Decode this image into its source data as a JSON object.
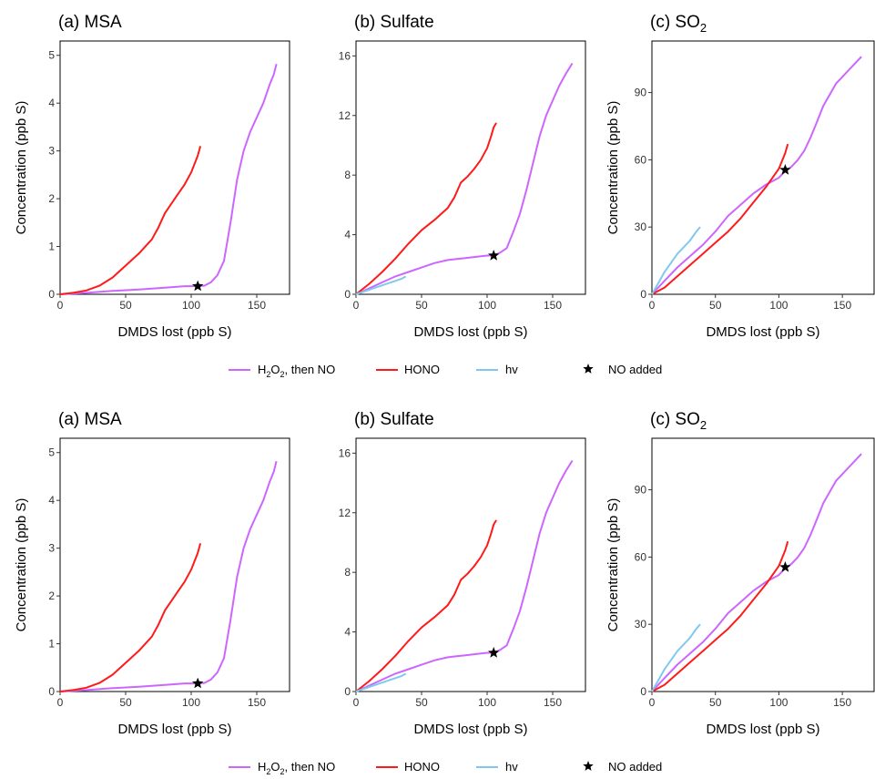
{
  "colors": {
    "h2o2_then_no": "#cc66ff",
    "hono": "#ff1a1a",
    "hv": "#80c8f0",
    "star": "#000000"
  },
  "legend": {
    "items": [
      {
        "key": "h2o2",
        "label_pre": "H",
        "sub1": "2",
        "mid": "O",
        "sub2": "2",
        "post": ", then NO"
      },
      {
        "key": "hono",
        "label": "HONO"
      },
      {
        "key": "hv",
        "label": "hv"
      },
      {
        "key": "star",
        "label": "NO added"
      }
    ]
  },
  "chart_data": [
    {
      "type": "line",
      "title": "(a) MSA",
      "xlabel": "DMDS lost (ppb S)",
      "ylabel": "Concentration (ppb S)",
      "xlim": [
        0,
        175
      ],
      "ylim": [
        0,
        5.3
      ],
      "xticks": [
        0,
        50,
        100,
        150
      ],
      "yticks": [
        0,
        1,
        2,
        3,
        4,
        5
      ],
      "series": [
        {
          "name": "H2O2, then NO",
          "color_key": "h2o2_then_no",
          "x": [
            0,
            20,
            40,
            60,
            80,
            95,
            105,
            110,
            115,
            120,
            125,
            130,
            135,
            140,
            145,
            150,
            155,
            160,
            163,
            165
          ],
          "y": [
            0,
            0.03,
            0.07,
            0.1,
            0.14,
            0.17,
            0.17,
            0.18,
            0.25,
            0.4,
            0.7,
            1.5,
            2.4,
            3.0,
            3.4,
            3.7,
            4.0,
            4.4,
            4.6,
            4.82
          ]
        },
        {
          "name": "HONO",
          "color_key": "hono",
          "x": [
            0,
            10,
            20,
            30,
            40,
            50,
            60,
            70,
            75,
            80,
            85,
            90,
            95,
            100,
            105,
            107
          ],
          "y": [
            0,
            0.03,
            0.08,
            0.18,
            0.35,
            0.6,
            0.85,
            1.15,
            1.4,
            1.7,
            1.9,
            2.1,
            2.3,
            2.55,
            2.9,
            3.1
          ]
        }
      ],
      "markers": [
        {
          "name": "NO added",
          "x": 105,
          "y": 0.17
        }
      ]
    },
    {
      "type": "line",
      "title": "(b) Sulfate",
      "xlabel": "DMDS lost (ppb S)",
      "ylabel": "",
      "xlim": [
        0,
        175
      ],
      "ylim": [
        0,
        17
      ],
      "xticks": [
        0,
        50,
        100,
        150
      ],
      "yticks": [
        0,
        4,
        8,
        12,
        16
      ],
      "series": [
        {
          "name": "H2O2, then NO",
          "color_key": "h2o2_then_no",
          "x": [
            0,
            10,
            20,
            30,
            40,
            50,
            60,
            70,
            80,
            90,
            100,
            105,
            110,
            115,
            120,
            125,
            130,
            135,
            140,
            145,
            150,
            155,
            160,
            165
          ],
          "y": [
            0,
            0.4,
            0.8,
            1.2,
            1.5,
            1.8,
            2.1,
            2.3,
            2.4,
            2.5,
            2.6,
            2.6,
            2.8,
            3.1,
            4.2,
            5.4,
            7.0,
            8.8,
            10.6,
            12.0,
            13.0,
            14.0,
            14.8,
            15.5
          ]
        },
        {
          "name": "HONO",
          "color_key": "hono",
          "x": [
            0,
            10,
            20,
            30,
            40,
            50,
            60,
            70,
            75,
            80,
            85,
            90,
            95,
            100,
            103,
            105,
            107
          ],
          "y": [
            0,
            0.7,
            1.5,
            2.4,
            3.4,
            4.3,
            5.0,
            5.8,
            6.5,
            7.5,
            7.9,
            8.4,
            9.0,
            9.8,
            10.6,
            11.2,
            11.5
          ]
        },
        {
          "name": "hv",
          "color_key": "hv",
          "x": [
            0,
            5,
            10,
            15,
            20,
            25,
            30,
            35,
            38
          ],
          "y": [
            0,
            0.15,
            0.3,
            0.45,
            0.6,
            0.75,
            0.9,
            1.05,
            1.2
          ]
        }
      ],
      "markers": [
        {
          "name": "NO added",
          "x": 105,
          "y": 2.6
        }
      ]
    },
    {
      "type": "line",
      "title_pre": "(c) SO",
      "title_sub": "2",
      "xlabel": "DMDS lost (ppb S)",
      "ylabel": "Concentration (ppb S)",
      "xlim": [
        0,
        175
      ],
      "ylim": [
        0,
        113
      ],
      "xticks": [
        0,
        50,
        100,
        150
      ],
      "yticks": [
        0,
        30,
        60,
        90
      ],
      "series": [
        {
          "name": "H2O2, then NO",
          "color_key": "h2o2_then_no",
          "x": [
            0,
            10,
            20,
            30,
            40,
            50,
            60,
            70,
            80,
            90,
            100,
            105,
            110,
            115,
            120,
            125,
            130,
            135,
            140,
            145,
            150,
            155,
            160,
            165
          ],
          "y": [
            0,
            6,
            12,
            17,
            22,
            28,
            35,
            40,
            45,
            49,
            52,
            55,
            57,
            60,
            64,
            70,
            77,
            84,
            89,
            94,
            97,
            100,
            103,
            106
          ]
        },
        {
          "name": "HONO",
          "color_key": "hono",
          "x": [
            0,
            10,
            20,
            30,
            40,
            50,
            60,
            70,
            80,
            90,
            100,
            105,
            107
          ],
          "y": [
            0,
            3,
            8,
            13,
            18,
            23,
            28,
            34,
            41,
            48,
            56,
            63,
            67
          ]
        },
        {
          "name": "hv",
          "color_key": "hv",
          "x": [
            0,
            5,
            10,
            15,
            20,
            25,
            30,
            35,
            38
          ],
          "y": [
            0,
            5,
            10,
            14,
            18,
            21,
            24,
            28,
            30
          ]
        }
      ],
      "markers": [
        {
          "name": "NO added",
          "x": 105,
          "y": 55.5
        }
      ]
    }
  ]
}
